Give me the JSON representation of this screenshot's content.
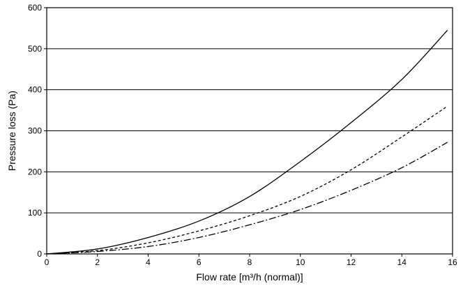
{
  "chart_data": {
    "type": "line",
    "xlabel": "Flow rate [m³/h (normal)]",
    "ylabel": "Pressure loss (Pa)",
    "xlim": [
      0,
      16
    ],
    "ylim": [
      0,
      600
    ],
    "xticks": [
      0,
      2,
      4,
      6,
      8,
      10,
      12,
      14,
      16
    ],
    "yticks": [
      0,
      100,
      200,
      300,
      400,
      500,
      600
    ],
    "horizontal_grid": true,
    "vertical_grid": false,
    "series": [
      {
        "style": "solid",
        "dash": "",
        "x": [
          0,
          2,
          4,
          6,
          8,
          10,
          12,
          14,
          15.8
        ],
        "y": [
          0,
          12,
          40,
          80,
          140,
          225,
          320,
          425,
          545
        ]
      },
      {
        "style": "dashed",
        "dash": "4,3",
        "x": [
          0,
          2,
          4,
          6,
          8,
          10,
          12,
          14,
          15.8
        ],
        "y": [
          0,
          8,
          27,
          56,
          93,
          140,
          205,
          285,
          360
        ]
      },
      {
        "style": "dash-dot",
        "dash": "10,3,2,3",
        "x": [
          0,
          2,
          4,
          6,
          8,
          10,
          12,
          14,
          15.8
        ],
        "y": [
          0,
          6,
          18,
          40,
          71,
          108,
          155,
          210,
          272
        ]
      }
    ]
  }
}
